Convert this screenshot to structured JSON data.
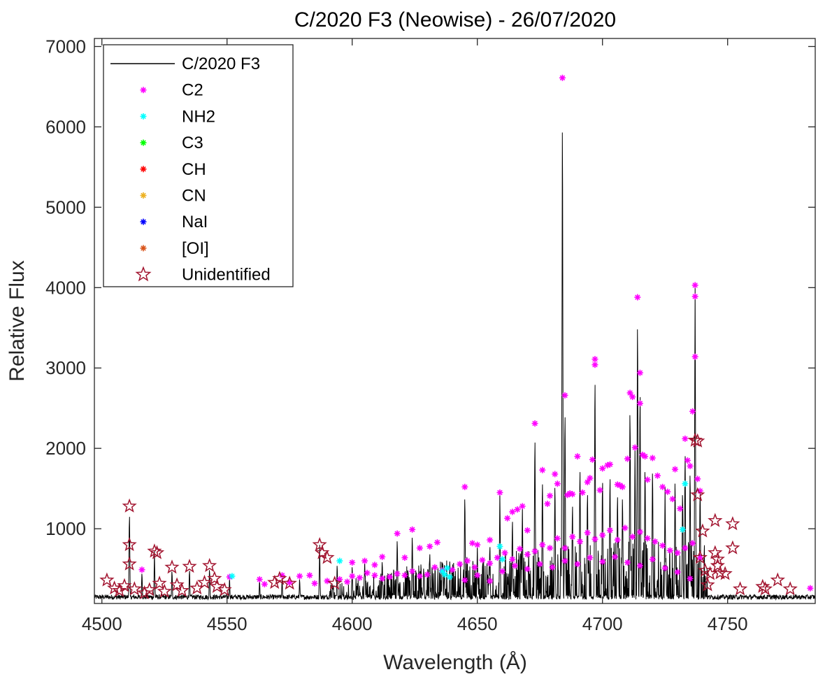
{
  "chart_data": {
    "type": "line",
    "title": "C/2020 F3 (Neowise) - 26/07/2020",
    "xlabel": "Wavelength (Å)",
    "ylabel": "Relative Flux",
    "xlim": [
      4497,
      4785
    ],
    "ylim": [
      70,
      7100
    ],
    "x_ticks": [
      4500,
      4550,
      4600,
      4650,
      4700,
      4750
    ],
    "y_ticks": [
      1000,
      2000,
      3000,
      4000,
      5000,
      6000,
      7000
    ],
    "grid": false,
    "legend_position": "top-left",
    "legend": [
      {
        "label": "C/2020 F3",
        "marker": "line",
        "color": "#000000"
      },
      {
        "label": "C2",
        "marker": "asterisk",
        "color": "#ff00ff"
      },
      {
        "label": "NH2",
        "marker": "asterisk",
        "color": "#00ffff"
      },
      {
        "label": "C3",
        "marker": "asterisk",
        "color": "#00ff00"
      },
      {
        "label": "CH",
        "marker": "asterisk",
        "color": "#ff0000"
      },
      {
        "label": "CN",
        "marker": "asterisk",
        "color": "#edb120"
      },
      {
        "label": "NaI",
        "marker": "asterisk",
        "color": "#0000ff"
      },
      {
        "label": "[OI]",
        "marker": "asterisk",
        "color": "#d95319"
      },
      {
        "label": "Unidentified",
        "marker": "star",
        "color": "#a2142f"
      }
    ],
    "baseline": 140,
    "spectrum_peaks": [
      [
        4511,
        1280
      ],
      [
        4516,
        490
      ],
      [
        4521,
        720
      ],
      [
        4528,
        520
      ],
      [
        4535,
        530
      ],
      [
        4543,
        540
      ],
      [
        4551,
        410
      ],
      [
        4563,
        380
      ],
      [
        4572,
        420
      ],
      [
        4579,
        410
      ],
      [
        4587,
        800
      ],
      [
        4594,
        600
      ],
      [
        4600,
        580
      ],
      [
        4605,
        600
      ],
      [
        4612,
        650
      ],
      [
        4618,
        940
      ],
      [
        4624,
        990
      ],
      [
        4631,
        760
      ],
      [
        4639,
        660
      ],
      [
        4645,
        1520
      ],
      [
        4650,
        800
      ],
      [
        4655,
        860
      ],
      [
        4659,
        1450
      ],
      [
        4664,
        1210
      ],
      [
        4668,
        1280
      ],
      [
        4673,
        2310
      ],
      [
        4676,
        1730
      ],
      [
        4681,
        1680
      ],
      [
        4684,
        6610
      ],
      [
        4685,
        2660
      ],
      [
        4688,
        1420
      ],
      [
        4691,
        1900
      ],
      [
        4694,
        1580
      ],
      [
        4697,
        3110
      ],
      [
        4700,
        1750
      ],
      [
        4703,
        1800
      ],
      [
        4706,
        1550
      ],
      [
        4708,
        1520
      ],
      [
        4711,
        2690
      ],
      [
        4713,
        2010
      ],
      [
        4714,
        3880
      ],
      [
        4715,
        2940
      ],
      [
        4717,
        1900
      ],
      [
        4720,
        1880
      ],
      [
        4725,
        1520
      ],
      [
        4729,
        1740
      ],
      [
        4732,
        1580
      ],
      [
        4733,
        2120
      ],
      [
        4735,
        1850
      ],
      [
        4737,
        4030
      ],
      [
        4739,
        1620
      ]
    ],
    "series": [
      {
        "name": "C2",
        "color": "#ff00ff",
        "points": [
          [
            4516,
            490
          ],
          [
            4551,
            400
          ],
          [
            4563,
            370
          ],
          [
            4572,
            420
          ],
          [
            4579,
            410
          ],
          [
            4583,
            420
          ],
          [
            4600,
            580
          ],
          [
            4605,
            600
          ],
          [
            4609,
            550
          ],
          [
            4612,
            650
          ],
          [
            4618,
            940
          ],
          [
            4621,
            640
          ],
          [
            4624,
            990
          ],
          [
            4627,
            760
          ],
          [
            4631,
            780
          ],
          [
            4634,
            830
          ],
          [
            4645,
            1520
          ],
          [
            4648,
            820
          ],
          [
            4650,
            800
          ],
          [
            4655,
            860
          ],
          [
            4659,
            1450
          ],
          [
            4662,
            1130
          ],
          [
            4664,
            1210
          ],
          [
            4666,
            1240
          ],
          [
            4668,
            1280
          ],
          [
            4670,
            980
          ],
          [
            4673,
            2310
          ],
          [
            4676,
            1730
          ],
          [
            4678,
            1310
          ],
          [
            4679,
            1410
          ],
          [
            4681,
            1680
          ],
          [
            4682,
            1560
          ],
          [
            4684,
            6610
          ],
          [
            4685,
            2660
          ],
          [
            4686,
            1420
          ],
          [
            4687,
            1440
          ],
          [
            4688,
            1430
          ],
          [
            4690,
            1900
          ],
          [
            4692,
            1450
          ],
          [
            4694,
            1580
          ],
          [
            4695,
            1630
          ],
          [
            4696,
            1860
          ],
          [
            4697,
            3110
          ],
          [
            4697,
            3040
          ],
          [
            4699,
            1480
          ],
          [
            4700,
            1750
          ],
          [
            4702,
            1790
          ],
          [
            4703,
            1800
          ],
          [
            4706,
            1550
          ],
          [
            4707,
            1540
          ],
          [
            4708,
            1520
          ],
          [
            4710,
            1870
          ],
          [
            4711,
            2690
          ],
          [
            4712,
            2640
          ],
          [
            4713,
            2010
          ],
          [
            4714,
            3880
          ],
          [
            4715,
            2940
          ],
          [
            4715,
            2560
          ],
          [
            4716,
            1920
          ],
          [
            4717,
            1900
          ],
          [
            4718,
            1610
          ],
          [
            4720,
            1880
          ],
          [
            4722,
            1660
          ],
          [
            4724,
            1520
          ],
          [
            4726,
            1460
          ],
          [
            4728,
            1370
          ],
          [
            4729,
            1740
          ],
          [
            4731,
            1250
          ],
          [
            4733,
            2120
          ],
          [
            4734,
            1850
          ],
          [
            4735,
            1780
          ],
          [
            4736,
            2460
          ],
          [
            4737,
            4030
          ],
          [
            4737,
            3890
          ],
          [
            4737,
            3140
          ],
          [
            4738,
            1620
          ],
          [
            4739,
            1470
          ],
          [
            4783,
            260
          ],
          [
            4600,
            410
          ],
          [
            4603,
            390
          ],
          [
            4606,
            450
          ],
          [
            4609,
            420
          ],
          [
            4612,
            380
          ],
          [
            4615,
            400
          ],
          [
            4618,
            440
          ],
          [
            4621,
            420
          ],
          [
            4624,
            470
          ],
          [
            4627,
            410
          ],
          [
            4630,
            430
          ],
          [
            4633,
            520
          ],
          [
            4636,
            480
          ],
          [
            4640,
            490
          ],
          [
            4643,
            560
          ],
          [
            4646,
            600
          ],
          [
            4649,
            520
          ],
          [
            4652,
            610
          ],
          [
            4655,
            570
          ],
          [
            4658,
            640
          ],
          [
            4661,
            700
          ],
          [
            4664,
            620
          ],
          [
            4667,
            750
          ],
          [
            4670,
            680
          ],
          [
            4673,
            720
          ],
          [
            4676,
            800
          ],
          [
            4679,
            760
          ],
          [
            4682,
            880
          ],
          [
            4685,
            760
          ],
          [
            4688,
            900
          ],
          [
            4691,
            840
          ],
          [
            4694,
            950
          ],
          [
            4697,
            870
          ],
          [
            4700,
            920
          ],
          [
            4703,
            980
          ],
          [
            4706,
            860
          ],
          [
            4709,
            1010
          ],
          [
            4712,
            900
          ],
          [
            4715,
            960
          ],
          [
            4718,
            880
          ],
          [
            4721,
            840
          ],
          [
            4724,
            790
          ],
          [
            4727,
            730
          ],
          [
            4730,
            700
          ],
          [
            4733,
            760
          ],
          [
            4736,
            820
          ],
          [
            4739,
            640
          ],
          [
            4645,
            360
          ],
          [
            4650,
            420
          ],
          [
            4655,
            350
          ],
          [
            4660,
            470
          ],
          [
            4665,
            540
          ],
          [
            4670,
            500
          ],
          [
            4675,
            560
          ],
          [
            4680,
            520
          ],
          [
            4685,
            600
          ],
          [
            4690,
            560
          ],
          [
            4695,
            640
          ],
          [
            4700,
            590
          ],
          [
            4705,
            650
          ],
          [
            4710,
            580
          ],
          [
            4715,
            540
          ],
          [
            4720,
            620
          ],
          [
            4725,
            510
          ],
          [
            4730,
            460
          ],
          [
            4735,
            380
          ],
          [
            4565,
            310
          ],
          [
            4575,
            330
          ],
          [
            4585,
            320
          ],
          [
            4590,
            350
          ],
          [
            4595,
            370
          ],
          [
            4598,
            340
          ]
        ]
      },
      {
        "name": "NH2",
        "color": "#00ffff",
        "points": [
          [
            4552,
            410
          ],
          [
            4595,
            600
          ],
          [
            4636,
            470
          ],
          [
            4637,
            430
          ],
          [
            4638,
            510
          ],
          [
            4639,
            400
          ],
          [
            4659,
            780
          ],
          [
            4660,
            620
          ],
          [
            4732,
            990
          ],
          [
            4733,
            1560
          ]
        ]
      },
      {
        "name": "Unidentified",
        "color": "#a2142f",
        "points": [
          [
            4502,
            360
          ],
          [
            4505,
            260
          ],
          [
            4507,
            230
          ],
          [
            4509,
            290
          ],
          [
            4511,
            1280
          ],
          [
            4511,
            800
          ],
          [
            4511,
            560
          ],
          [
            4513,
            250
          ],
          [
            4517,
            200
          ],
          [
            4519,
            240
          ],
          [
            4521,
            720
          ],
          [
            4522,
            700
          ],
          [
            4523,
            320
          ],
          [
            4525,
            220
          ],
          [
            4528,
            520
          ],
          [
            4530,
            300
          ],
          [
            4532,
            230
          ],
          [
            4535,
            530
          ],
          [
            4538,
            260
          ],
          [
            4541,
            330
          ],
          [
            4543,
            540
          ],
          [
            4545,
            380
          ],
          [
            4546,
            280
          ],
          [
            4549,
            240
          ],
          [
            4569,
            330
          ],
          [
            4571,
            380
          ],
          [
            4575,
            320
          ],
          [
            4587,
            800
          ],
          [
            4588,
            700
          ],
          [
            4590,
            640
          ],
          [
            4593,
            320
          ],
          [
            4737,
            2100
          ],
          [
            4738,
            2090
          ],
          [
            4738,
            1420
          ],
          [
            4740,
            970
          ],
          [
            4739,
            640
          ],
          [
            4741,
            480
          ],
          [
            4742,
            300
          ],
          [
            4743,
            440
          ],
          [
            4745,
            1100
          ],
          [
            4745,
            700
          ],
          [
            4746,
            620
          ],
          [
            4746,
            540
          ],
          [
            4747,
            450
          ],
          [
            4749,
            440
          ],
          [
            4752,
            1060
          ],
          [
            4752,
            760
          ],
          [
            4755,
            250
          ],
          [
            4764,
            280
          ],
          [
            4765,
            250
          ],
          [
            4770,
            360
          ],
          [
            4775,
            250
          ]
        ]
      }
    ]
  }
}
